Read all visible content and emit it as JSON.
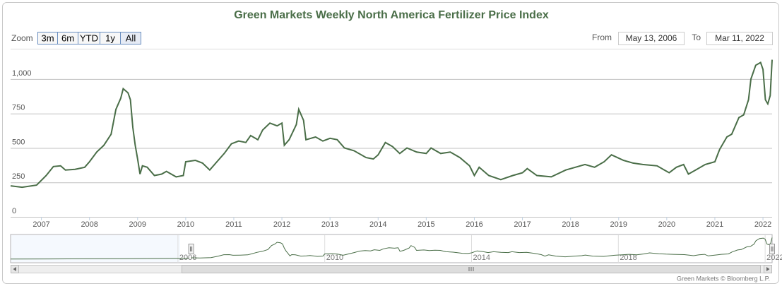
{
  "chart_data": {
    "type": "line",
    "title": "Green Markets Weekly North America Fertilizer Price Index",
    "color": "#4a6e48",
    "grid": true,
    "zoom_label": "Zoom",
    "zoom_buttons": [
      "3m",
      "6m",
      "YTD",
      "1y",
      "All"
    ],
    "from_label": "From",
    "from_date": "May 13, 2006",
    "to_label": "To",
    "to_date": "Mar 11, 2022",
    "credit": "Green Markets © Bloomberg L.P.",
    "xlim": [
      2006.36,
      2022.19
    ],
    "xticks": [
      2007,
      2008,
      2009,
      2010,
      2011,
      2012,
      2013,
      2014,
      2015,
      2016,
      2017,
      2018,
      2019,
      2020,
      2021,
      2022
    ],
    "ylim": [
      0,
      1220
    ],
    "yticks": [
      0,
      250,
      500,
      750,
      {
        "value": 1000,
        "label": "1,000"
      }
    ],
    "x": [
      2006.36,
      2006.6,
      2006.9,
      2007.1,
      2007.25,
      2007.4,
      2007.5,
      2007.7,
      2007.9,
      2008.0,
      2008.15,
      2008.3,
      2008.45,
      2008.55,
      2008.65,
      2008.7,
      2008.8,
      2008.85,
      2008.9,
      2008.95,
      2009.0,
      2009.05,
      2009.1,
      2009.2,
      2009.35,
      2009.5,
      2009.6,
      2009.8,
      2009.95,
      2010.0,
      2010.2,
      2010.35,
      2010.5,
      2010.65,
      2010.8,
      2010.95,
      2011.1,
      2011.25,
      2011.35,
      2011.5,
      2011.6,
      2011.75,
      2011.9,
      2012.0,
      2012.05,
      2012.15,
      2012.3,
      2012.35,
      2012.45,
      2012.5,
      2012.7,
      2012.85,
      2013.0,
      2013.15,
      2013.3,
      2013.5,
      2013.75,
      2013.9,
      2014.0,
      2014.15,
      2014.3,
      2014.45,
      2014.6,
      2014.8,
      2015.0,
      2015.1,
      2015.3,
      2015.5,
      2015.7,
      2015.9,
      2016.0,
      2016.1,
      2016.3,
      2016.55,
      2016.8,
      2017.0,
      2017.1,
      2017.3,
      2017.6,
      2017.9,
      2018.1,
      2018.3,
      2018.5,
      2018.7,
      2018.85,
      2019.1,
      2019.3,
      2019.5,
      2019.8,
      2019.95,
      2020.05,
      2020.2,
      2020.35,
      2020.45,
      2020.6,
      2020.8,
      2021.0,
      2021.1,
      2021.25,
      2021.35,
      2021.5,
      2021.6,
      2021.7,
      2021.75,
      2021.85,
      2021.95,
      2022.0,
      2022.05,
      2022.1,
      2022.15,
      2022.19
    ],
    "values": [
      225,
      215,
      230,
      300,
      365,
      370,
      340,
      345,
      360,
      400,
      470,
      520,
      600,
      780,
      860,
      930,
      900,
      850,
      650,
      520,
      420,
      310,
      370,
      360,
      300,
      310,
      330,
      290,
      300,
      400,
      410,
      390,
      340,
      400,
      460,
      530,
      550,
      540,
      590,
      560,
      630,
      680,
      660,
      680,
      520,
      560,
      670,
      780,
      700,
      560,
      580,
      550,
      570,
      560,
      500,
      480,
      430,
      420,
      450,
      540,
      510,
      460,
      500,
      470,
      460,
      500,
      460,
      470,
      430,
      370,
      300,
      360,
      300,
      270,
      300,
      320,
      350,
      300,
      290,
      340,
      360,
      380,
      360,
      400,
      450,
      410,
      390,
      380,
      370,
      340,
      320,
      360,
      380,
      310,
      340,
      380,
      400,
      490,
      580,
      600,
      720,
      740,
      850,
      1000,
      1100,
      1120,
      1070,
      850,
      820,
      880,
      1140
    ],
    "navigator": {
      "xlim": [
        2001.44,
        2022.19
      ],
      "ylim": [
        0,
        1250
      ],
      "xticks": [
        2006,
        2010,
        2014,
        2018,
        2022
      ],
      "x": [
        2001.44,
        2002.5,
        2003.5,
        2004.5,
        2005.5,
        2006.3
      ],
      "values": [
        170,
        172,
        178,
        185,
        195,
        205
      ]
    }
  }
}
